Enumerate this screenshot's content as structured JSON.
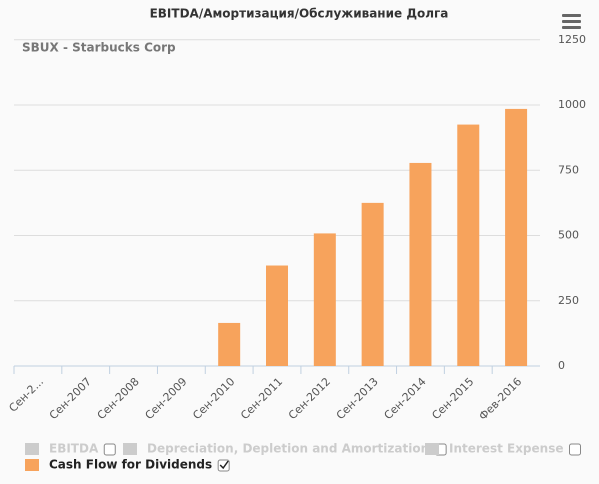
{
  "chart_data": {
    "type": "bar",
    "title": "EBITDA/Амортизация/Обслуживание Долга",
    "subtitle": "SBUX - Starbucks Corp",
    "categories": [
      "Сен-2...",
      "Сен-2007",
      "Сен-2008",
      "Сен-2009",
      "Сен-2010",
      "Сен-2011",
      "Сен-2012",
      "Сен-2013",
      "Сен-2014",
      "Сен-2015",
      "Фев-2016"
    ],
    "series": [
      {
        "name": "EBITDA",
        "color": "#cccccc",
        "visible": false
      },
      {
        "name": "Depreciation, Depletion and Amortization",
        "color": "#cccccc",
        "visible": false
      },
      {
        "name": "Interest Expense",
        "color": "#cccccc",
        "visible": false
      },
      {
        "name": "Cash Flow for Dividends",
        "color": "#f7a35c",
        "visible": true,
        "values": [
          null,
          null,
          null,
          null,
          165,
          385,
          508,
          625,
          778,
          925,
          985
        ]
      }
    ],
    "ylim": [
      0,
      1250
    ],
    "yticks": [
      0,
      250,
      500,
      750,
      1000,
      1250
    ],
    "grid": true
  }
}
